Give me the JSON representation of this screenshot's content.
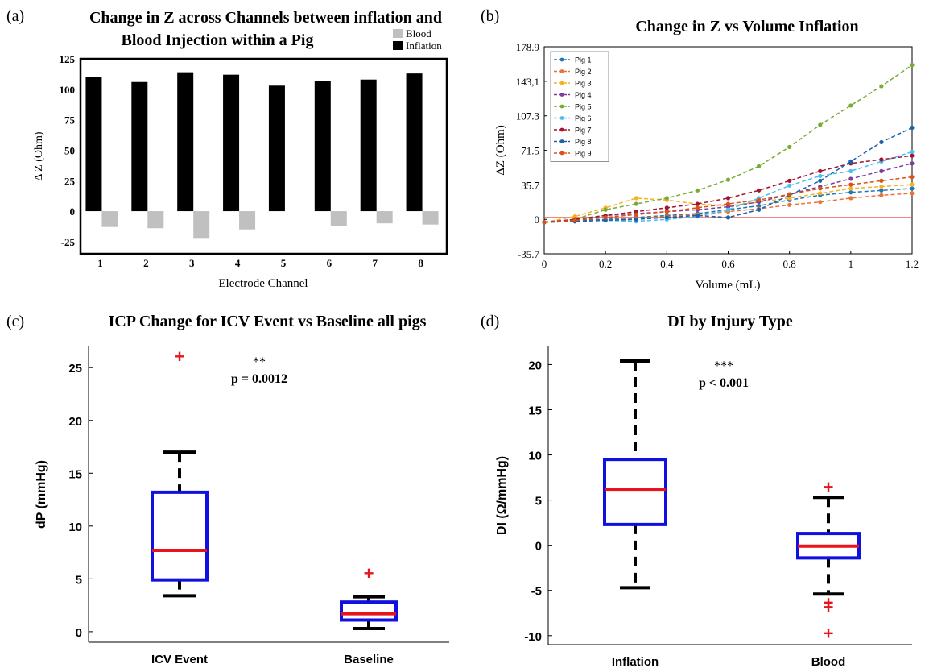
{
  "chart_data": [
    {
      "id": "a",
      "panel_label": "(a)",
      "type": "bar",
      "title": [
        "Change in Z across Channels between inflation and",
        "Blood Injection within a Pig"
      ],
      "xlabel": "Electrode Channel",
      "ylabel": "Δ Z (Ohm)",
      "ylim": [
        -35,
        125
      ],
      "yticks": [
        -25,
        0,
        25,
        50,
        75,
        100,
        125
      ],
      "categories": [
        "1",
        "2",
        "3",
        "4",
        "5",
        "6",
        "7",
        "8"
      ],
      "series": [
        {
          "name": "Blood",
          "color": "#c0c0c0",
          "values": [
            -13,
            -14,
            -22,
            -15,
            0,
            -12,
            -10,
            -11
          ]
        },
        {
          "name": "Inflation",
          "color": "#000000",
          "values": [
            110,
            106,
            114,
            112,
            103,
            107,
            108,
            113
          ]
        }
      ],
      "legend": "top-right"
    },
    {
      "id": "b",
      "panel_label": "(b)",
      "type": "line",
      "title": "Change in Z vs Volume Inflation",
      "xlabel": "Volume (mL)",
      "ylabel": "ΔZ (Ohm)",
      "xlim": [
        0,
        1.2
      ],
      "ylim": [
        -35.7,
        178.9
      ],
      "xticks": [
        "0",
        "0.2",
        "0.4",
        "0.6",
        "0.8",
        "1",
        "1.2"
      ],
      "ytick_values": [
        -35.7,
        0,
        35.7,
        71.5,
        107.3,
        143.1,
        178.9
      ],
      "ytick_labels": [
        "-35.7",
        "0",
        "35.7",
        "71.5",
        "107.3",
        "143,1",
        "178.9"
      ],
      "reference_line": {
        "y": 2,
        "color": "#e8413c"
      },
      "x": [
        0,
        0.1,
        0.2,
        0.3,
        0.4,
        0.5,
        0.6,
        0.7,
        0.8,
        0.9,
        1.0,
        1.1,
        1.2
      ],
      "series": [
        {
          "name": "Pig 1",
          "color": "#1f77b4",
          "values": [
            -3,
            -1,
            0,
            2,
            4,
            6,
            10,
            14,
            20,
            25,
            28,
            30,
            32
          ]
        },
        {
          "name": "Pig 2",
          "color": "#e8743b",
          "values": [
            -3,
            -2,
            -1,
            1,
            3,
            5,
            8,
            11,
            15,
            18,
            22,
            25,
            27
          ]
        },
        {
          "name": "Pig 3",
          "color": "#f5b324",
          "values": [
            -3,
            3,
            12,
            22,
            20,
            16,
            14,
            18,
            22,
            27,
            32,
            34,
            36
          ]
        },
        {
          "name": "Pig 4",
          "color": "#7b3f99",
          "values": [
            -3,
            0,
            4,
            6,
            8,
            10,
            13,
            18,
            26,
            34,
            42,
            50,
            58
          ]
        },
        {
          "name": "Pig 5",
          "color": "#77ac30",
          "values": [
            -3,
            0,
            10,
            16,
            22,
            30,
            41,
            55,
            75,
            98,
            118,
            138,
            160
          ]
        },
        {
          "name": "Pig 6",
          "color": "#4dbeee",
          "values": [
            -3,
            -2,
            -1,
            -2,
            0,
            3,
            10,
            22,
            35,
            45,
            50,
            60,
            70
          ]
        },
        {
          "name": "Pig 7",
          "color": "#a2142f",
          "values": [
            -3,
            0,
            4,
            8,
            12,
            16,
            22,
            30,
            40,
            50,
            58,
            62,
            66
          ]
        },
        {
          "name": "Pig 8",
          "color": "#1763ad",
          "values": [
            -3,
            -2,
            -1,
            0,
            2,
            4,
            2,
            10,
            25,
            40,
            60,
            80,
            95
          ]
        },
        {
          "name": "Pig 9",
          "color": "#d95319",
          "values": [
            -3,
            -1,
            2,
            5,
            8,
            12,
            16,
            20,
            26,
            32,
            36,
            40,
            44
          ]
        }
      ],
      "legend": "top-left"
    },
    {
      "id": "c",
      "panel_label": "(c)",
      "type": "box",
      "title": "ICP Change for ICV Event vs Baseline all pigs",
      "ylabel": "dP (mmHg)",
      "ylim": [
        -1,
        27
      ],
      "yticks": [
        0,
        5,
        10,
        15,
        20,
        25
      ],
      "categories": [
        "ICV Event",
        "Baseline"
      ],
      "boxes": [
        {
          "name": "ICV Event",
          "whisker_low": 3.4,
          "q1": 4.9,
          "median": 7.7,
          "q3": 13.2,
          "whisker_high": 17,
          "outliers": [
            26
          ]
        },
        {
          "name": "Baseline",
          "whisker_low": 0.3,
          "q1": 1.1,
          "median": 1.7,
          "q3": 2.8,
          "whisker_high": 3.3,
          "outliers": [
            5.5
          ]
        }
      ],
      "annotation": {
        "stars": "**",
        "text": "p = 0.0012"
      }
    },
    {
      "id": "d",
      "panel_label": "(d)",
      "type": "box",
      "title": "DI by Injury Type",
      "ylabel": "DI (Ω/mmHg)",
      "ylim": [
        -11,
        22
      ],
      "yticks": [
        -10,
        -5,
        0,
        5,
        10,
        15,
        20
      ],
      "categories": [
        "Inflation",
        "Blood"
      ],
      "boxes": [
        {
          "name": "Inflation",
          "whisker_low": -4.7,
          "q1": 2.3,
          "median": 6.2,
          "q3": 9.5,
          "whisker_high": 20.4,
          "outliers": []
        },
        {
          "name": "Blood",
          "whisker_low": -5.4,
          "q1": -1.4,
          "median": -0.1,
          "q3": 1.3,
          "whisker_high": 5.3,
          "outliers": [
            6.4,
            -6.4,
            -6.9,
            -9.8
          ]
        }
      ],
      "annotation": {
        "stars": "***",
        "text": "p < 0.001"
      }
    }
  ]
}
